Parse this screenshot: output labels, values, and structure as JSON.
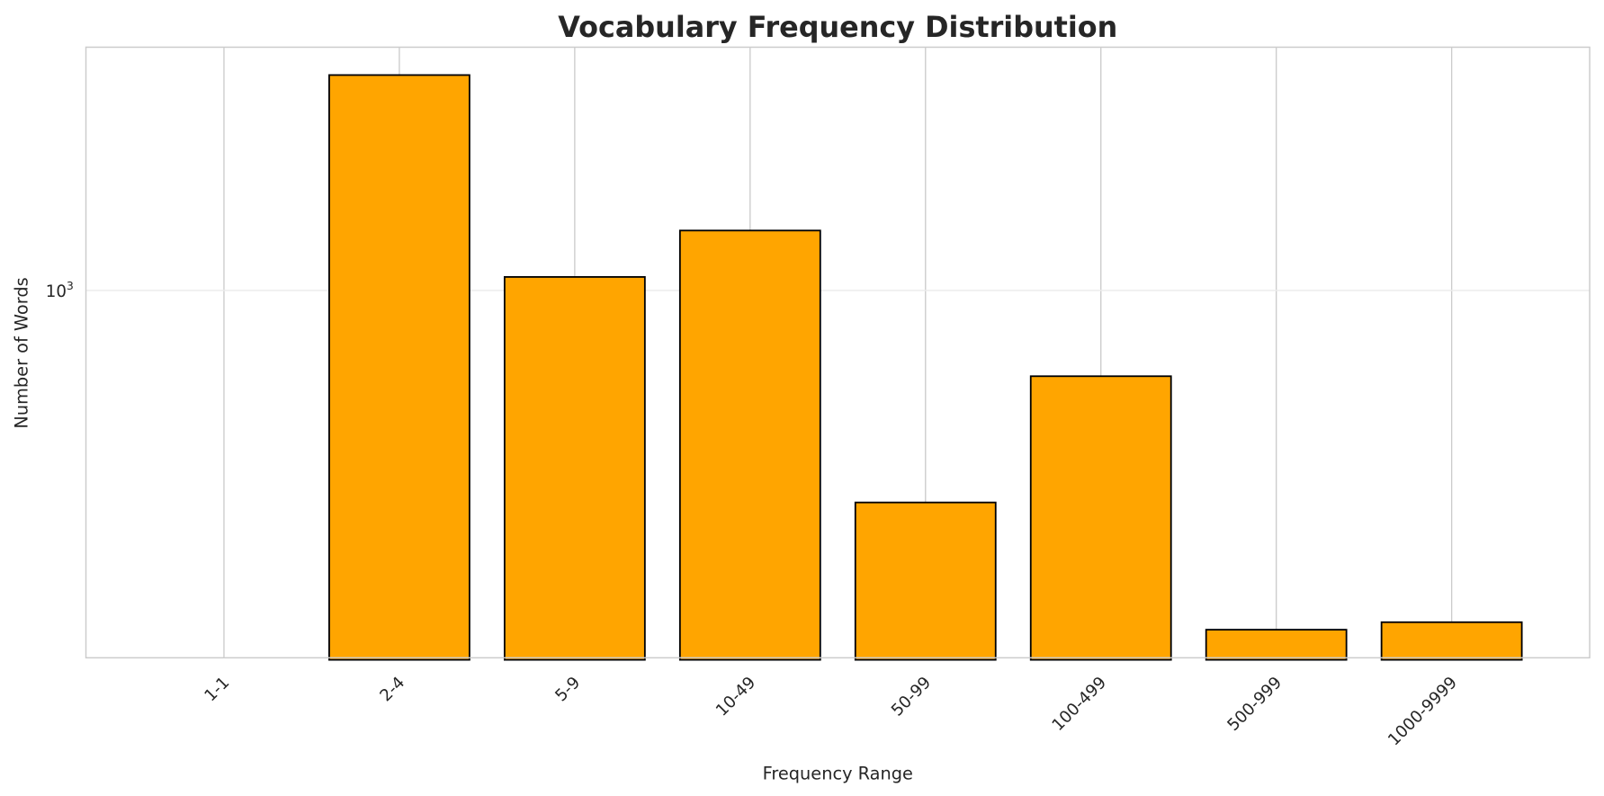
{
  "chart_data": {
    "type": "bar",
    "title": "Vocabulary Frequency Distribution",
    "xlabel": "Frequency Range",
    "ylabel": "Number of Words",
    "yscale": "log",
    "categories": [
      "1-1",
      "2-4",
      "5-9",
      "10-49",
      "50-99",
      "100-499",
      "500-999",
      "1000-9999"
    ],
    "values": [
      0,
      2940,
      1070,
      1350,
      346,
      651,
      183,
      190
    ],
    "ylim": [
      159,
      3380
    ],
    "yticks": [
      {
        "value": 1000,
        "base": "10",
        "exp": "3"
      }
    ],
    "grid": true,
    "bar_color": "#FFA500",
    "edge_color": "#000000"
  }
}
